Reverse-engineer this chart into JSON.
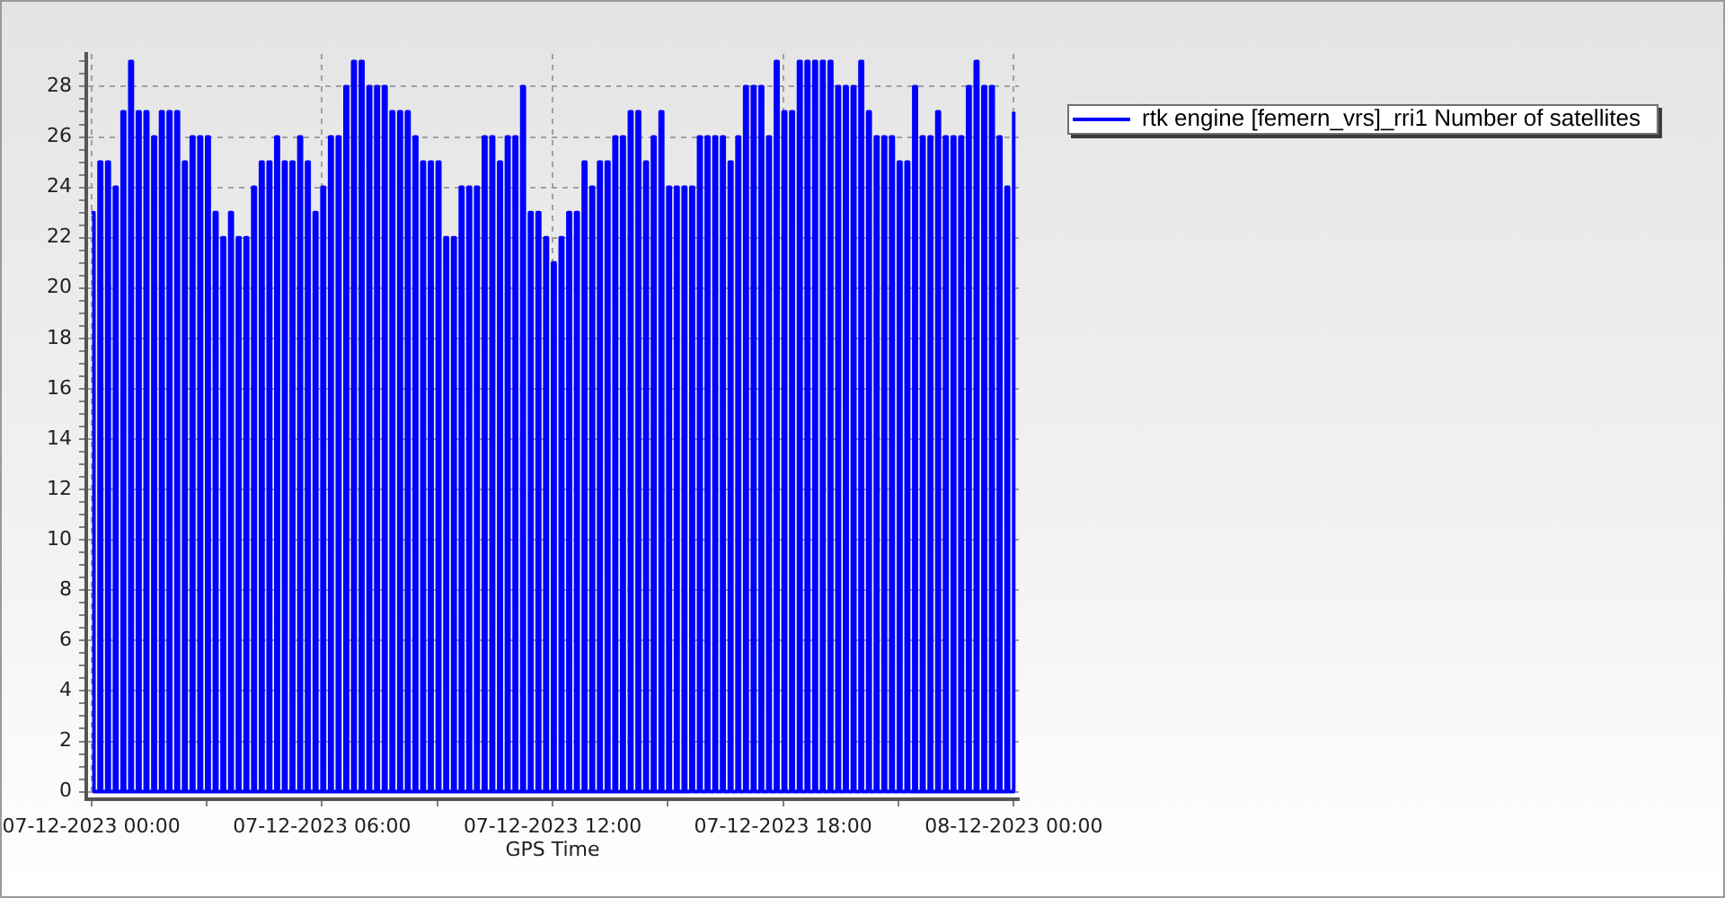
{
  "chart_data": {
    "type": "step",
    "xlabel": "GPS Time",
    "x": [
      "2023-12-07T00:00",
      "2023-12-07T00:04",
      "2023-12-07T00:12",
      "2023-12-07T00:16",
      "2023-12-07T00:24",
      "2023-12-07T00:28",
      "2023-12-07T00:36",
      "2023-12-07T00:40",
      "2023-12-07T00:48",
      "2023-12-07T00:52",
      "2023-12-07T01:00",
      "2023-12-07T01:04",
      "2023-12-07T01:12",
      "2023-12-07T01:16",
      "2023-12-07T01:24",
      "2023-12-07T01:28",
      "2023-12-07T01:36",
      "2023-12-07T01:40",
      "2023-12-07T01:48",
      "2023-12-07T01:52",
      "2023-12-07T02:00",
      "2023-12-07T02:04",
      "2023-12-07T02:12",
      "2023-12-07T02:16",
      "2023-12-07T02:24",
      "2023-12-07T02:28",
      "2023-12-07T02:36",
      "2023-12-07T02:40",
      "2023-12-07T02:48",
      "2023-12-07T02:52",
      "2023-12-07T03:00",
      "2023-12-07T03:04",
      "2023-12-07T03:12",
      "2023-12-07T03:16",
      "2023-12-07T03:24",
      "2023-12-07T03:28",
      "2023-12-07T03:36",
      "2023-12-07T03:40",
      "2023-12-07T03:48",
      "2023-12-07T03:52",
      "2023-12-07T04:00",
      "2023-12-07T04:04",
      "2023-12-07T04:12",
      "2023-12-07T04:16",
      "2023-12-07T04:24",
      "2023-12-07T04:28",
      "2023-12-07T04:36",
      "2023-12-07T04:40",
      "2023-12-07T04:48",
      "2023-12-07T04:52",
      "2023-12-07T05:00",
      "2023-12-07T05:04",
      "2023-12-07T05:12",
      "2023-12-07T05:16",
      "2023-12-07T05:24",
      "2023-12-07T05:28",
      "2023-12-07T05:36",
      "2023-12-07T05:40",
      "2023-12-07T05:48",
      "2023-12-07T05:52",
      "2023-12-07T06:00",
      "2023-12-07T06:04",
      "2023-12-07T06:12",
      "2023-12-07T06:16",
      "2023-12-07T06:24",
      "2023-12-07T06:28",
      "2023-12-07T06:36",
      "2023-12-07T06:40",
      "2023-12-07T06:48",
      "2023-12-07T06:52",
      "2023-12-07T07:00",
      "2023-12-07T07:04",
      "2023-12-07T07:12",
      "2023-12-07T07:16",
      "2023-12-07T07:24",
      "2023-12-07T07:28",
      "2023-12-07T07:36",
      "2023-12-07T07:40",
      "2023-12-07T07:48",
      "2023-12-07T07:52",
      "2023-12-07T08:00",
      "2023-12-07T08:04",
      "2023-12-07T08:12",
      "2023-12-07T08:16",
      "2023-12-07T08:24",
      "2023-12-07T08:28",
      "2023-12-07T08:36",
      "2023-12-07T08:40",
      "2023-12-07T08:48",
      "2023-12-07T08:52",
      "2023-12-07T09:00",
      "2023-12-07T09:04",
      "2023-12-07T09:12",
      "2023-12-07T09:16",
      "2023-12-07T09:24",
      "2023-12-07T09:28",
      "2023-12-07T09:36",
      "2023-12-07T09:40",
      "2023-12-07T09:48",
      "2023-12-07T09:52",
      "2023-12-07T10:00",
      "2023-12-07T10:04",
      "2023-12-07T10:12",
      "2023-12-07T10:16",
      "2023-12-07T10:24",
      "2023-12-07T10:28",
      "2023-12-07T10:36",
      "2023-12-07T10:40",
      "2023-12-07T10:48",
      "2023-12-07T10:52",
      "2023-12-07T11:00",
      "2023-12-07T11:04",
      "2023-12-07T11:12",
      "2023-12-07T11:16",
      "2023-12-07T11:24",
      "2023-12-07T11:28",
      "2023-12-07T11:36",
      "2023-12-07T11:40",
      "2023-12-07T11:48",
      "2023-12-07T11:52",
      "2023-12-07T12:00",
      "2023-12-07T12:04",
      "2023-12-07T12:12",
      "2023-12-07T12:16",
      "2023-12-07T12:24",
      "2023-12-07T12:28",
      "2023-12-07T12:36",
      "2023-12-07T12:40",
      "2023-12-07T12:48",
      "2023-12-07T12:52",
      "2023-12-07T13:00",
      "2023-12-07T13:04",
      "2023-12-07T13:12",
      "2023-12-07T13:16",
      "2023-12-07T13:24",
      "2023-12-07T13:28",
      "2023-12-07T13:36",
      "2023-12-07T13:40",
      "2023-12-07T13:48",
      "2023-12-07T13:52",
      "2023-12-07T14:00",
      "2023-12-07T14:04",
      "2023-12-07T14:12",
      "2023-12-07T14:16",
      "2023-12-07T14:24",
      "2023-12-07T14:28",
      "2023-12-07T14:36",
      "2023-12-07T14:40",
      "2023-12-07T14:48",
      "2023-12-07T14:52",
      "2023-12-07T15:00",
      "2023-12-07T15:04",
      "2023-12-07T15:12",
      "2023-12-07T15:16",
      "2023-12-07T15:24",
      "2023-12-07T15:28",
      "2023-12-07T15:36",
      "2023-12-07T15:40",
      "2023-12-07T15:48",
      "2023-12-07T15:52",
      "2023-12-07T16:00",
      "2023-12-07T16:04",
      "2023-12-07T16:12",
      "2023-12-07T16:16",
      "2023-12-07T16:24",
      "2023-12-07T16:28",
      "2023-12-07T16:36",
      "2023-12-07T16:40",
      "2023-12-07T16:48",
      "2023-12-07T16:52",
      "2023-12-07T17:00",
      "2023-12-07T17:04",
      "2023-12-07T17:12",
      "2023-12-07T17:16",
      "2023-12-07T17:24",
      "2023-12-07T17:28",
      "2023-12-07T17:36",
      "2023-12-07T17:40",
      "2023-12-07T17:48",
      "2023-12-07T17:52",
      "2023-12-07T18:00",
      "2023-12-07T18:04",
      "2023-12-07T18:12",
      "2023-12-07T18:16",
      "2023-12-07T18:24",
      "2023-12-07T18:28",
      "2023-12-07T18:36",
      "2023-12-07T18:40",
      "2023-12-07T18:48",
      "2023-12-07T18:52",
      "2023-12-07T19:00",
      "2023-12-07T19:04",
      "2023-12-07T19:12",
      "2023-12-07T19:16",
      "2023-12-07T19:24",
      "2023-12-07T19:28",
      "2023-12-07T19:36",
      "2023-12-07T19:40",
      "2023-12-07T19:48",
      "2023-12-07T19:52",
      "2023-12-07T20:00",
      "2023-12-07T20:04",
      "2023-12-07T20:12",
      "2023-12-07T20:16",
      "2023-12-07T20:24",
      "2023-12-07T20:28",
      "2023-12-07T20:36",
      "2023-12-07T20:40",
      "2023-12-07T20:48",
      "2023-12-07T20:52",
      "2023-12-07T21:00",
      "2023-12-07T21:04",
      "2023-12-07T21:12",
      "2023-12-07T21:16",
      "2023-12-07T21:24",
      "2023-12-07T21:28",
      "2023-12-07T21:36",
      "2023-12-07T21:40",
      "2023-12-07T21:48",
      "2023-12-07T21:52",
      "2023-12-07T22:00",
      "2023-12-07T22:04",
      "2023-12-07T22:12",
      "2023-12-07T22:16",
      "2023-12-07T22:24",
      "2023-12-07T22:28",
      "2023-12-07T22:36",
      "2023-12-07T22:40",
      "2023-12-07T22:48",
      "2023-12-07T22:52",
      "2023-12-07T23:00",
      "2023-12-07T23:04",
      "2023-12-07T23:12",
      "2023-12-07T23:16",
      "2023-12-07T23:24",
      "2023-12-07T23:28",
      "2023-12-07T23:36",
      "2023-12-07T23:40",
      "2023-12-07T23:48",
      "2023-12-07T23:52",
      "2023-12-08T00:00"
    ],
    "series": [
      {
        "name": "rtk engine [femern_vrs]_rri1 Number of satellites",
        "color": "#0000ff",
        "values": [
          23,
          0,
          25,
          0,
          25,
          0,
          24,
          0,
          27,
          0,
          29,
          0,
          27,
          0,
          27,
          0,
          26,
          0,
          27,
          0,
          27,
          0,
          27,
          0,
          25,
          0,
          26,
          0,
          26,
          0,
          26,
          0,
          23,
          0,
          22,
          0,
          23,
          0,
          22,
          0,
          22,
          0,
          24,
          0,
          25,
          0,
          25,
          0,
          26,
          0,
          25,
          0,
          25,
          0,
          26,
          0,
          25,
          0,
          23,
          0,
          24,
          0,
          26,
          0,
          26,
          0,
          28,
          0,
          29,
          0,
          29,
          0,
          28,
          0,
          28,
          0,
          28,
          0,
          27,
          0,
          27,
          0,
          27,
          0,
          26,
          0,
          25,
          0,
          25,
          0,
          25,
          0,
          22,
          0,
          22,
          0,
          24,
          0,
          24,
          0,
          24,
          0,
          26,
          0,
          26,
          0,
          25,
          0,
          26,
          0,
          26,
          0,
          28,
          0,
          23,
          0,
          23,
          0,
          22,
          0,
          21,
          0,
          22,
          0,
          23,
          0,
          23,
          0,
          25,
          0,
          24,
          0,
          25,
          0,
          25,
          0,
          26,
          0,
          26,
          0,
          27,
          0,
          27,
          0,
          25,
          0,
          26,
          0,
          27,
          0,
          24,
          0,
          24,
          0,
          24,
          0,
          24,
          0,
          26,
          0,
          26,
          0,
          26,
          0,
          26,
          0,
          25,
          0,
          26,
          0,
          28,
          0,
          28,
          0,
          28,
          0,
          26,
          0,
          29,
          0,
          27,
          0,
          27,
          0,
          29,
          0,
          29,
          0,
          29,
          0,
          29,
          0,
          29,
          0,
          28,
          0,
          28,
          0,
          28,
          0,
          29,
          0,
          27,
          0,
          26,
          0,
          26,
          0,
          26,
          0,
          25,
          0,
          25,
          0,
          28,
          0,
          26,
          0,
          26,
          0,
          27,
          0,
          26,
          0,
          26,
          0,
          26,
          0,
          28,
          0,
          29,
          0,
          28,
          0,
          28,
          0,
          26,
          0,
          24,
          0,
          27
        ]
      }
    ],
    "xlim": [
      "2023-12-06T23:52",
      "2023-12-08T00:08"
    ],
    "xticks": [
      {
        "value": "2023-12-07T00:00",
        "label": "07-12-2023 00:00"
      },
      {
        "value": "2023-12-07T03:00",
        "label": null
      },
      {
        "value": "2023-12-07T06:00",
        "label": "07-12-2023 06:00"
      },
      {
        "value": "2023-12-07T09:00",
        "label": null
      },
      {
        "value": "2023-12-07T12:00",
        "label": "07-12-2023 12:00"
      },
      {
        "value": "2023-12-07T15:00",
        "label": null
      },
      {
        "value": "2023-12-07T18:00",
        "label": "07-12-2023 18:00"
      },
      {
        "value": "2023-12-07T21:00",
        "label": null
      },
      {
        "value": "2023-12-08T00:00",
        "label": "08-12-2023 00:00"
      }
    ],
    "ylim": [
      -0.3,
      29.3
    ],
    "yticks": [
      0,
      {
        "value": 0.5,
        "label": null
      },
      {
        "value": 1,
        "label": null
      },
      {
        "value": 1.5,
        "label": null
      },
      2,
      {
        "value": 2.5,
        "label": null
      },
      {
        "value": 3,
        "label": null
      },
      {
        "value": 3.5,
        "label": null
      },
      4,
      {
        "value": 4.5,
        "label": null
      },
      {
        "value": 5,
        "label": null
      },
      {
        "value": 5.5,
        "label": null
      },
      6,
      {
        "value": 6.5,
        "label": null
      },
      {
        "value": 7,
        "label": null
      },
      {
        "value": 7.5,
        "label": null
      },
      8,
      {
        "value": 8.5,
        "label": null
      },
      {
        "value": 9,
        "label": null
      },
      {
        "value": 9.5,
        "label": null
      },
      10,
      {
        "value": 10.5,
        "label": null
      },
      {
        "value": 11,
        "label": null
      },
      {
        "value": 11.5,
        "label": null
      },
      12,
      {
        "value": 12.5,
        "label": null
      },
      {
        "value": 13,
        "label": null
      },
      {
        "value": 13.5,
        "label": null
      },
      14,
      {
        "value": 14.5,
        "label": null
      },
      {
        "value": 15,
        "label": null
      },
      {
        "value": 15.5,
        "label": null
      },
      16,
      {
        "value": 16.5,
        "label": null
      },
      {
        "value": 17,
        "label": null
      },
      {
        "value": 17.5,
        "label": null
      },
      18,
      {
        "value": 18.5,
        "label": null
      },
      {
        "value": 19,
        "label": null
      },
      {
        "value": 19.5,
        "label": null
      },
      20,
      {
        "value": 20.5,
        "label": null
      },
      {
        "value": 21,
        "label": null
      },
      {
        "value": 21.5,
        "label": null
      },
      22,
      {
        "value": 22.5,
        "label": null
      },
      {
        "value": 23,
        "label": null
      },
      {
        "value": 23.5,
        "label": null
      },
      24,
      {
        "value": 24.5,
        "label": null
      },
      {
        "value": 25,
        "label": null
      },
      {
        "value": 25.5,
        "label": null
      },
      26,
      {
        "value": 26.5,
        "label": null
      },
      {
        "value": 27,
        "label": null
      },
      {
        "value": 27.5,
        "label": null
      },
      28,
      {
        "value": 28.5,
        "label": null
      },
      {
        "value": 29,
        "label": null
      }
    ],
    "grid": true,
    "legend": "top right"
  }
}
